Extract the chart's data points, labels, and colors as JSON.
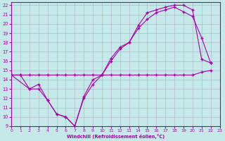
{
  "xlabel": "Windchill (Refroidissement éolien,°C)",
  "xlim": [
    0,
    23
  ],
  "ylim": [
    9,
    22.3
  ],
  "xticks": [
    0,
    1,
    2,
    3,
    4,
    5,
    6,
    7,
    8,
    9,
    10,
    11,
    12,
    13,
    14,
    15,
    16,
    17,
    18,
    19,
    20,
    21,
    22,
    23
  ],
  "yticks": [
    9,
    10,
    11,
    12,
    13,
    14,
    15,
    16,
    17,
    18,
    19,
    20,
    21,
    22
  ],
  "bg_color": "#c5e8e8",
  "line_color": "#aa00aa",
  "grid_color": "#b0b8cc",
  "line1_x": [
    0,
    1,
    2,
    3,
    4,
    5,
    6,
    7,
    8,
    9,
    10,
    11,
    12,
    13,
    14,
    15,
    16,
    17,
    18,
    19,
    20,
    21,
    22
  ],
  "line1_y": [
    14.5,
    14.5,
    14.5,
    14.5,
    14.5,
    14.5,
    14.5,
    14.5,
    14.5,
    14.5,
    14.5,
    14.5,
    14.5,
    14.5,
    14.5,
    14.5,
    14.5,
    14.5,
    14.5,
    14.5,
    14.5,
    14.8,
    15.0
  ],
  "line2_x": [
    0,
    1,
    2,
    3,
    4,
    5,
    6,
    7,
    8,
    9,
    10,
    11,
    12,
    13,
    14,
    15,
    16,
    17,
    18,
    19,
    20,
    21,
    22
  ],
  "line2_y": [
    14.5,
    14.5,
    13.0,
    13.0,
    11.8,
    10.3,
    10.0,
    9.0,
    12.0,
    13.5,
    14.5,
    16.0,
    17.3,
    18.0,
    19.5,
    20.5,
    21.2,
    21.5,
    21.8,
    21.3,
    20.8,
    18.5,
    15.8
  ],
  "line3_x": [
    0,
    2,
    3,
    4,
    5,
    6,
    7,
    8,
    9,
    10,
    11,
    12,
    13,
    14,
    15,
    16,
    17,
    18,
    19,
    20,
    21,
    22
  ],
  "line3_y": [
    14.5,
    13.0,
    13.5,
    11.8,
    10.3,
    10.0,
    9.0,
    12.2,
    14.0,
    14.5,
    16.3,
    17.5,
    18.0,
    19.8,
    21.2,
    21.5,
    21.8,
    22.0,
    22.0,
    21.5,
    16.2,
    15.8
  ]
}
